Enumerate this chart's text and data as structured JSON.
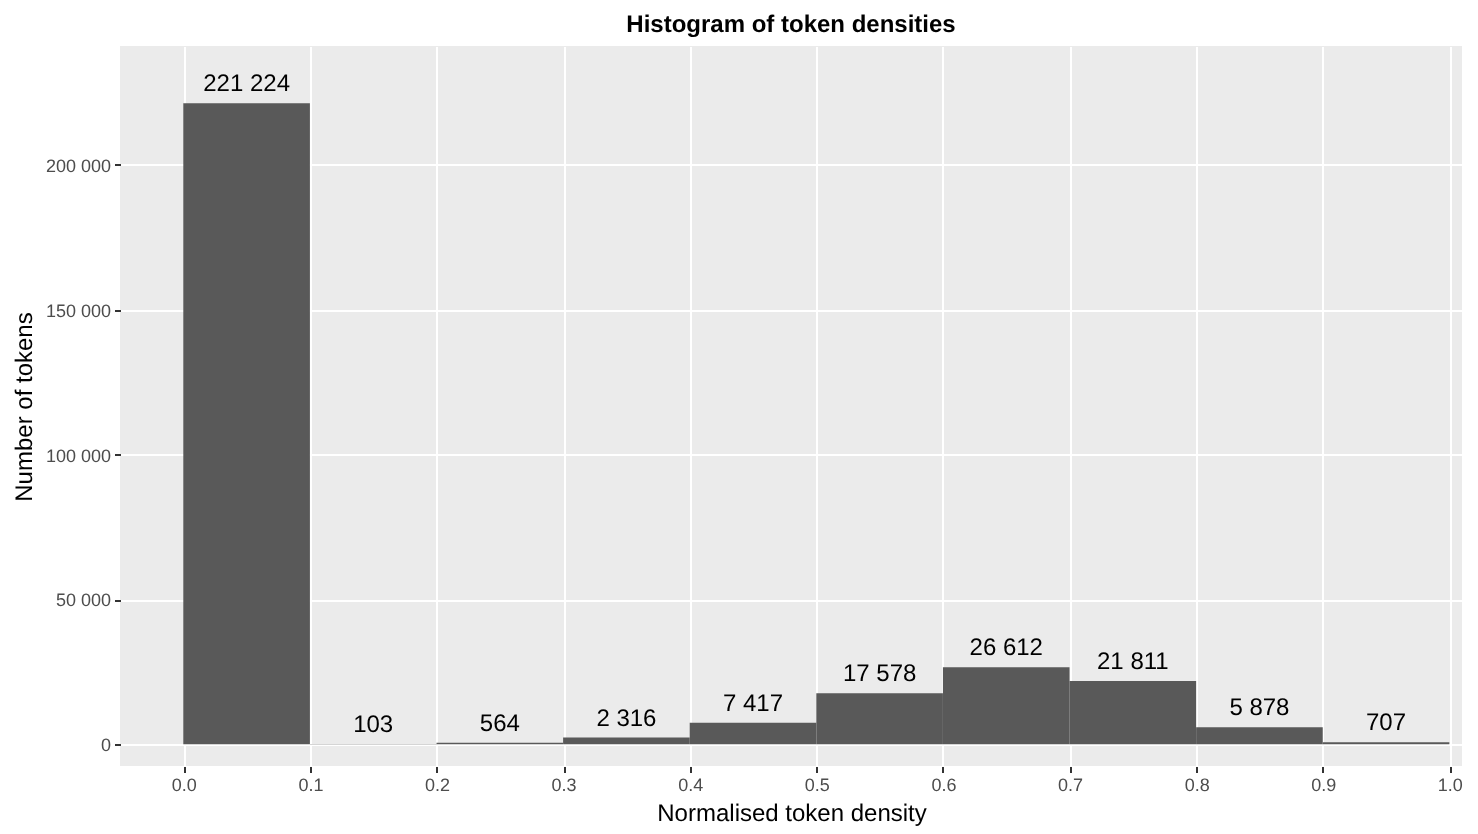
{
  "chart_data": {
    "type": "histogram",
    "title": "Histogram of token densities",
    "xlabel": "Normalised token density",
    "ylabel": "Number of tokens",
    "bins": [
      0,
      0.1,
      0.2,
      0.3,
      0.4,
      0.5,
      0.6,
      0.7,
      0.8,
      0.9,
      1.0
    ],
    "values": [
      221224,
      103,
      564,
      2316,
      7417,
      17578,
      26612,
      21811,
      5878,
      707
    ],
    "value_labels": [
      "221 224",
      "103",
      "564",
      "2 316",
      "7 417",
      "17 578",
      "26 612",
      "21 811",
      "5 878",
      "707"
    ],
    "color": "#595959",
    "xlim": [
      -0.05,
      1.01
    ],
    "xticks": [
      {
        "value": 0,
        "label": "0.0"
      },
      {
        "value": 0.1,
        "label": "0.1"
      },
      {
        "value": 0.2,
        "label": "0.2"
      },
      {
        "value": 0.3,
        "label": "0.3"
      },
      {
        "value": 0.4,
        "label": "0.4"
      },
      {
        "value": 0.5,
        "label": "0.5"
      },
      {
        "value": 0.6,
        "label": "0.6"
      },
      {
        "value": 0.7,
        "label": "0.7"
      },
      {
        "value": 0.8,
        "label": "0.8"
      },
      {
        "value": 0.9,
        "label": "0.9"
      },
      {
        "value": 1.0,
        "label": "1.0"
      }
    ],
    "ylim": [
      -7500,
      241000
    ],
    "yticks": [
      {
        "value": 0,
        "label": "0"
      },
      {
        "value": 50000,
        "label": "50 000"
      },
      {
        "value": 100000,
        "label": "100 000"
      },
      {
        "value": 150000,
        "label": "150 000"
      },
      {
        "value": 200000,
        "label": "200 000"
      }
    ],
    "grid": true
  }
}
